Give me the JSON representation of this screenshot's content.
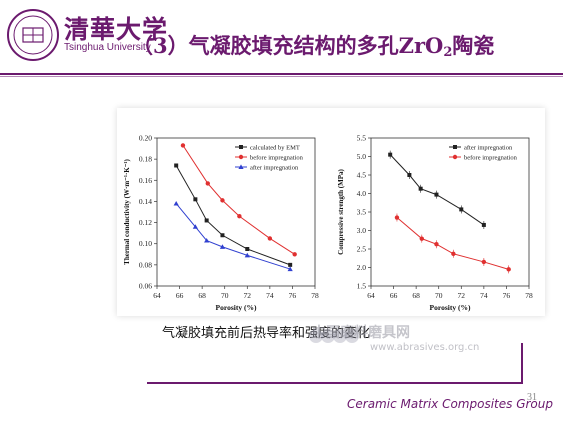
{
  "header": {
    "logo_cn": "清華大学",
    "logo_en": "Tsinghua University",
    "title_main": "（3）气凝胶填充结构的多孔ZrO",
    "title_sub": "2",
    "title_end": "陶瓷"
  },
  "caption": "气凝胶填充前后热导率和强度的变化",
  "watermark": {
    "cn": "中国磨料磨具网",
    "url": "www.abrasives.org.cn"
  },
  "footer": {
    "group": "Ceramic Matrix Composites Group",
    "page": "31"
  },
  "colors": {
    "brand": "#6b1a6e",
    "black_series": "#222222",
    "red_series": "#e03030",
    "blue_series": "#3040d0"
  },
  "chart_data": [
    {
      "type": "line",
      "xlabel": "Porosity (%)",
      "ylabel": "Thermal conductivity (W·m⁻¹·K⁻¹)",
      "xlim": [
        64,
        78
      ],
      "ylim": [
        0.06,
        0.2
      ],
      "xticks": [
        "64",
        "66",
        "68",
        "70",
        "72",
        "74",
        "76",
        "78"
      ],
      "yticks": [
        "0.06",
        "0.08",
        "0.10",
        "0.12",
        "0.14",
        "0.16",
        "0.18",
        "0.20"
      ],
      "legend_position": "top-right",
      "series": [
        {
          "name": "calculated by EMT",
          "color": "#222222",
          "marker": "square",
          "x": [
            65.7,
            67.4,
            68.4,
            69.8,
            72.0,
            75.8
          ],
          "y": [
            0.174,
            0.142,
            0.122,
            0.108,
            0.095,
            0.08
          ]
        },
        {
          "name": "before impregnation",
          "color": "#e03030",
          "marker": "circle",
          "x": [
            66.3,
            68.5,
            69.8,
            71.3,
            74.0,
            76.2
          ],
          "y": [
            0.193,
            0.157,
            0.141,
            0.126,
            0.105,
            0.09
          ]
        },
        {
          "name": "after impregnation",
          "color": "#3040d0",
          "marker": "triangle",
          "x": [
            65.7,
            67.4,
            68.4,
            69.8,
            72.0,
            75.8
          ],
          "y": [
            0.138,
            0.116,
            0.103,
            0.097,
            0.089,
            0.076
          ]
        }
      ]
    },
    {
      "type": "line",
      "xlabel": "Porosity (%)",
      "ylabel": "Compressive strength (MPa)",
      "xlim": [
        64,
        78
      ],
      "ylim": [
        1.5,
        5.5
      ],
      "xticks": [
        "64",
        "66",
        "68",
        "70",
        "72",
        "74",
        "76",
        "78"
      ],
      "yticks": [
        "1.5",
        "2.0",
        "2.5",
        "3.0",
        "3.5",
        "4.0",
        "4.5",
        "5.0",
        "5.5"
      ],
      "legend_position": "top-right",
      "series": [
        {
          "name": "after impregnation",
          "color": "#222222",
          "marker": "square",
          "x": [
            65.7,
            67.4,
            68.4,
            69.8,
            72.0,
            74.0
          ],
          "y": [
            5.05,
            4.5,
            4.13,
            3.97,
            3.57,
            3.15
          ]
        },
        {
          "name": "before impregnation",
          "color": "#e03030",
          "marker": "circle",
          "x": [
            66.3,
            68.5,
            69.8,
            71.3,
            74.0,
            76.2
          ],
          "y": [
            3.35,
            2.78,
            2.63,
            2.37,
            2.15,
            1.95
          ]
        }
      ]
    }
  ]
}
